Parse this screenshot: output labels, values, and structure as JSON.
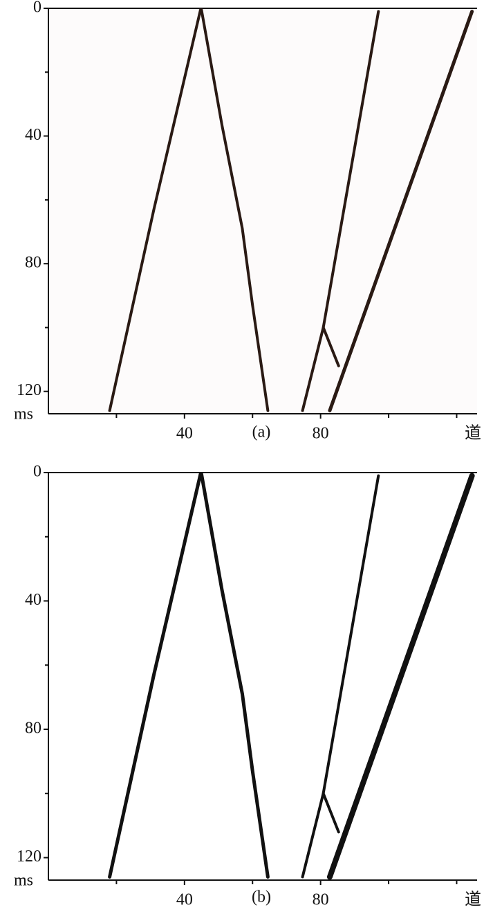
{
  "chart_data": [
    {
      "type": "line",
      "title": "(a)",
      "y_label": "ms",
      "x_label": "道",
      "xlim": [
        0,
        126
      ],
      "ylim": [
        0,
        127
      ],
      "xticks": [
        40,
        80
      ],
      "xminor": [
        20,
        60,
        100,
        120
      ],
      "yticks": [
        0,
        40,
        80,
        120
      ],
      "yminor": [
        20,
        60,
        100
      ],
      "series": [
        {
          "color": "#2a1a14",
          "x": [
            18,
            31,
            44.7
          ],
          "values": [
            126,
            63,
            0.5
          ]
        },
        {
          "color": "#2a1a14",
          "x": [
            45,
            51,
            57,
            60,
            64.5
          ],
          "values": [
            0.5,
            36.5,
            69,
            93,
            126
          ]
        },
        {
          "color": "#2a1a14",
          "x": [
            97,
            80.8,
            74.7
          ],
          "values": [
            1,
            100,
            126
          ]
        },
        {
          "color": "#2a1a14",
          "x": [
            124.5,
            82.7
          ],
          "values": [
            1,
            126
          ]
        },
        {
          "color": "#2a1a14",
          "x": [
            80.8,
            85.3
          ],
          "values": [
            100,
            112
          ]
        }
      ]
    },
    {
      "type": "line",
      "title": "(b)",
      "y_label": "ms",
      "x_label": "道",
      "xlim": [
        0,
        126
      ],
      "ylim": [
        0,
        127
      ],
      "xticks": [
        40,
        80
      ],
      "xminor": [
        20,
        60,
        100,
        120
      ],
      "yticks": [
        0,
        40,
        80,
        120
      ],
      "yminor": [
        20,
        60,
        100
      ],
      "series": [
        {
          "color": "#111111",
          "x": [
            18,
            31,
            44.7
          ],
          "values": [
            126,
            63,
            0.5
          ]
        },
        {
          "color": "#111111",
          "x": [
            45,
            51,
            57,
            60,
            64.5
          ],
          "values": [
            0.5,
            36.5,
            69,
            93,
            126
          ]
        },
        {
          "color": "#111111",
          "x": [
            97,
            80.8,
            74.7
          ],
          "values": [
            1,
            100,
            126
          ]
        },
        {
          "color": "#111111",
          "x": [
            124.5,
            82.7
          ],
          "values": [
            1,
            126
          ]
        },
        {
          "color": "#111111",
          "x": [
            80.8,
            85.3
          ],
          "values": [
            100,
            112
          ]
        }
      ]
    }
  ]
}
